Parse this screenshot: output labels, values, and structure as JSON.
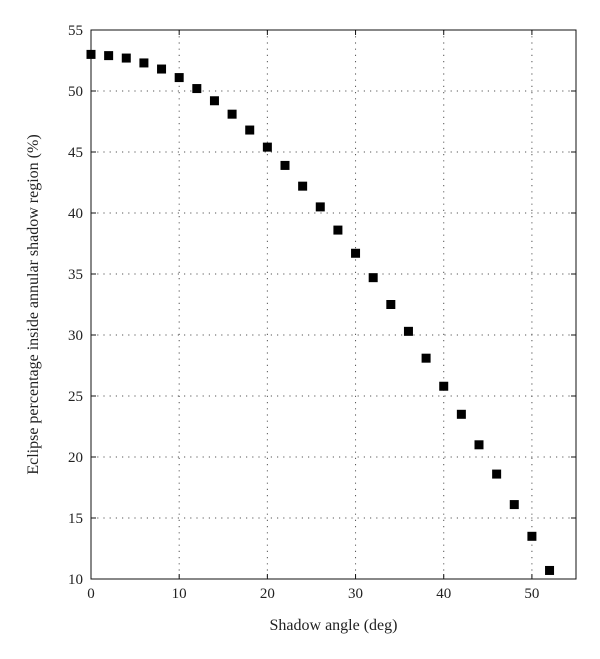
{
  "chart_data": {
    "type": "scatter",
    "title": "",
    "xlabel": "Shadow angle (deg)",
    "ylabel": "Eclipse percentage inside annular shadow region (%)",
    "xlim": [
      0,
      55
    ],
    "ylim": [
      10,
      55
    ],
    "xticks": [
      0,
      10,
      20,
      30,
      40,
      50
    ],
    "yticks": [
      10,
      15,
      20,
      25,
      30,
      35,
      40,
      45,
      50,
      55
    ],
    "grid": true,
    "marker": "square",
    "marker_color": "#000000",
    "series": [
      {
        "x": [
          0,
          2,
          4,
          6,
          8,
          10,
          12,
          14,
          16,
          18,
          20,
          22,
          24,
          26,
          28,
          30,
          32,
          34,
          36,
          38,
          40,
          42,
          44,
          46,
          48,
          50,
          52
        ],
        "y": [
          53.0,
          52.9,
          52.7,
          52.3,
          51.8,
          51.1,
          50.2,
          49.2,
          48.1,
          46.8,
          45.4,
          43.9,
          42.2,
          40.5,
          38.6,
          36.7,
          34.7,
          32.5,
          30.3,
          28.1,
          25.8,
          23.5,
          21.0,
          18.6,
          16.1,
          13.5,
          10.7
        ]
      }
    ]
  }
}
